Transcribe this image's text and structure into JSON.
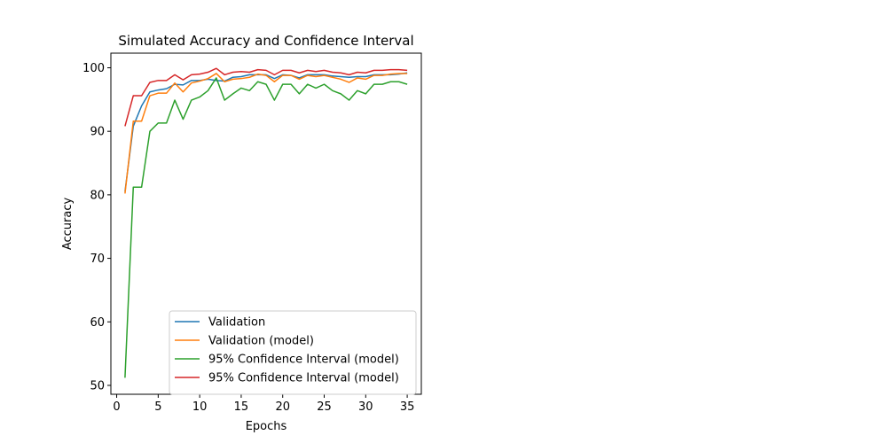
{
  "chart_data": {
    "type": "line",
    "title": "Simulated Accuracy and Confidence Interval",
    "xlabel": "Epochs",
    "ylabel": "Accuracy",
    "xlim": [
      -0.7,
      36.7
    ],
    "ylim": [
      48.6,
      102.3
    ],
    "xticks": [
      0,
      5,
      10,
      15,
      20,
      25,
      30,
      35
    ],
    "yticks": [
      50,
      60,
      70,
      80,
      90,
      100
    ],
    "grid": false,
    "legend_position": "lower-right",
    "x": [
      1,
      2,
      3,
      4,
      5,
      6,
      7,
      8,
      9,
      10,
      11,
      12,
      13,
      14,
      15,
      16,
      17,
      18,
      19,
      20,
      21,
      22,
      23,
      24,
      25,
      26,
      27,
      28,
      29,
      30,
      31,
      32,
      33,
      34,
      35
    ],
    "series": [
      {
        "name": "Validation",
        "color": "#1f77b4",
        "values": [
          80.5,
          90.8,
          94.0,
          96.2,
          96.5,
          96.7,
          97.4,
          97.3,
          98.0,
          98.0,
          98.2,
          98.0,
          97.9,
          98.5,
          98.6,
          98.9,
          98.9,
          98.9,
          98.3,
          98.9,
          98.8,
          98.4,
          98.9,
          98.9,
          98.9,
          98.7,
          98.6,
          98.5,
          98.6,
          98.6,
          98.9,
          98.9,
          98.9,
          99.0,
          99.2
        ]
      },
      {
        "name": "Validation (model)",
        "color": "#ff7f0e",
        "values": [
          80.2,
          91.6,
          91.6,
          95.6,
          96.0,
          96.0,
          97.6,
          96.2,
          97.6,
          97.9,
          98.3,
          99.1,
          97.8,
          98.2,
          98.3,
          98.5,
          99.0,
          98.8,
          97.8,
          98.8,
          98.8,
          98.2,
          98.8,
          98.6,
          98.8,
          98.5,
          98.2,
          97.7,
          98.4,
          98.2,
          98.8,
          98.8,
          99.0,
          99.1,
          99.1
        ]
      },
      {
        "name": "95% Confidence Interval (model)",
        "color": "#2ca02c",
        "values": [
          51.2,
          81.2,
          81.2,
          90.0,
          91.3,
          91.3,
          94.9,
          91.9,
          94.9,
          95.4,
          96.4,
          98.4,
          94.9,
          95.9,
          96.8,
          96.4,
          97.8,
          97.4,
          94.9,
          97.4,
          97.4,
          95.9,
          97.4,
          96.8,
          97.4,
          96.4,
          95.9,
          94.9,
          96.4,
          95.9,
          97.4,
          97.4,
          97.8,
          97.8,
          97.4
        ]
      },
      {
        "name": "95% Confidence Interval (model)",
        "color": "#d62728",
        "values": [
          90.8,
          95.6,
          95.6,
          97.7,
          98.0,
          98.0,
          98.9,
          98.1,
          98.9,
          99.0,
          99.3,
          99.9,
          98.9,
          99.3,
          99.4,
          99.3,
          99.7,
          99.6,
          98.9,
          99.6,
          99.6,
          99.2,
          99.6,
          99.4,
          99.6,
          99.3,
          99.2,
          98.9,
          99.3,
          99.2,
          99.6,
          99.6,
          99.7,
          99.7,
          99.6
        ]
      }
    ]
  }
}
